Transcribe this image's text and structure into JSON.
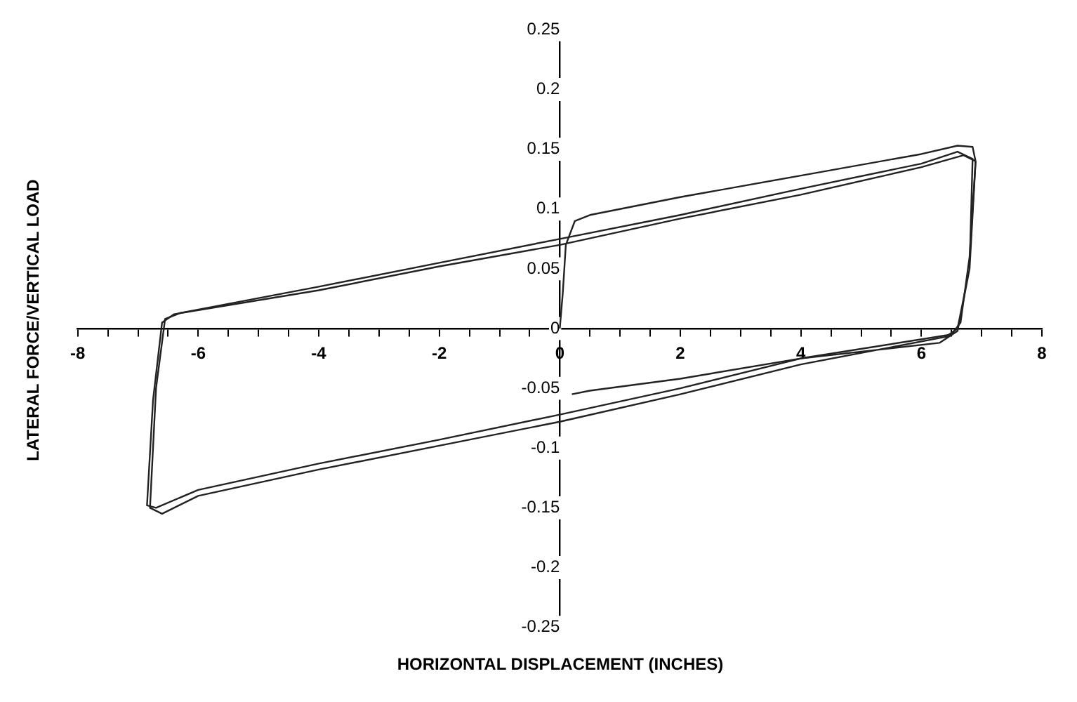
{
  "chart_data": {
    "type": "line",
    "xlabel": "HORIZONTAL DISPLACEMENT (INCHES)",
    "ylabel": "LATERAL FORCE/VERTICAL LOAD",
    "xlim": [
      -8,
      8
    ],
    "ylim": [
      -0.25,
      0.25
    ],
    "xticks": [
      -8,
      {
        "value": -7.5,
        "label": null
      },
      {
        "value": -7,
        "label": null
      },
      {
        "value": -6.5,
        "label": null
      },
      -6,
      {
        "value": -5.5,
        "label": null
      },
      {
        "value": -5,
        "label": null
      },
      {
        "value": -4.5,
        "label": null
      },
      -4,
      {
        "value": -3.5,
        "label": null
      },
      {
        "value": -3,
        "label": null
      },
      {
        "value": -2.5,
        "label": null
      },
      -2,
      {
        "value": -1.5,
        "label": null
      },
      {
        "value": -1,
        "label": null
      },
      {
        "value": -0.5,
        "label": null
      },
      0,
      {
        "value": 0.5,
        "label": null
      },
      {
        "value": 1,
        "label": null
      },
      {
        "value": 1.5,
        "label": null
      },
      2,
      {
        "value": 2.5,
        "label": null
      },
      {
        "value": 3,
        "label": null
      },
      {
        "value": 3.5,
        "label": null
      },
      4,
      {
        "value": 4.5,
        "label": null
      },
      {
        "value": 5,
        "label": null
      },
      {
        "value": 5.5,
        "label": null
      },
      6,
      {
        "value": 6.5,
        "label": null
      },
      {
        "value": 7,
        "label": null
      },
      {
        "value": 7.5,
        "label": null
      },
      8
    ],
    "yticks": [
      -0.25,
      -0.2,
      -0.15,
      -0.1,
      -0.05,
      0,
      0.05,
      0.1,
      0.15,
      0.2,
      0.25
    ],
    "grid": false,
    "legend": false,
    "marker": "none",
    "line_style": "solid",
    "series": [
      {
        "color": "#222222",
        "x": [
          0,
          0.05,
          0.1,
          0.25,
          0.5,
          2,
          4,
          6,
          6.6,
          6.85,
          6.9,
          6.8,
          6.65,
          6.5,
          4,
          2,
          0,
          -2,
          -4,
          -6,
          -6.7,
          -6.85,
          -6.75,
          -6.6,
          -6.4,
          -4,
          -2,
          0,
          2,
          4,
          6,
          6.7,
          6.9
        ],
        "values": [
          0,
          0.03,
          0.07,
          0.09,
          0.095,
          0.11,
          0.128,
          0.146,
          0.153,
          0.152,
          0.14,
          0.06,
          0.005,
          -0.005,
          -0.025,
          -0.05,
          -0.072,
          -0.093,
          -0.113,
          -0.135,
          -0.15,
          -0.148,
          -0.06,
          0.005,
          0.012,
          0.032,
          0.052,
          0.07,
          0.092,
          0.112,
          0.135,
          0.145,
          0.14
        ]
      },
      {
        "color": "#222222",
        "x": [
          6.9,
          6.8,
          6.6,
          6.4,
          4,
          2,
          0,
          -2,
          -4,
          -6,
          -6.6,
          -6.8,
          -6.7,
          -6.55,
          -6.3,
          -4,
          -2,
          0,
          2,
          4,
          6,
          6.6,
          6.85,
          6.8,
          6.6,
          6.3,
          4,
          2,
          0.5,
          0.2
        ],
        "values": [
          0.14,
          0.05,
          0,
          -0.007,
          -0.03,
          -0.055,
          -0.078,
          -0.098,
          -0.118,
          -0.14,
          -0.155,
          -0.15,
          -0.05,
          0.008,
          0.013,
          0.035,
          0.055,
          0.075,
          0.095,
          0.117,
          0.138,
          0.148,
          0.142,
          0.05,
          -0.002,
          -0.012,
          -0.025,
          -0.042,
          -0.052,
          -0.055
        ]
      }
    ]
  }
}
